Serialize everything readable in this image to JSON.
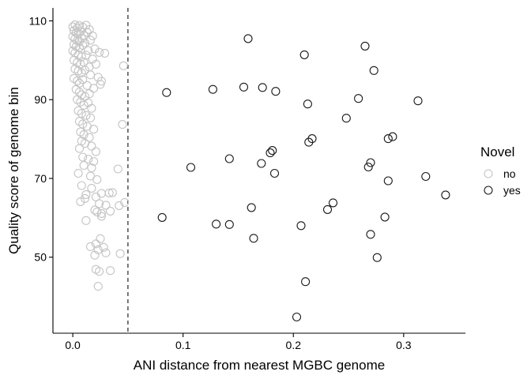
{
  "chart_data": {
    "type": "scatter",
    "title": "",
    "xlabel": "ANI distance from nearest MGBC genome",
    "ylabel": "Quality score of genome bin",
    "xlim": [
      -0.018,
      0.356
    ],
    "ylim": [
      30.7,
      113.3
    ],
    "xticks": [
      0.0,
      0.1,
      0.2,
      0.3
    ],
    "xtick_labels": [
      "0.0",
      "0.1",
      "0.2",
      "0.3"
    ],
    "yticks": [
      50,
      70,
      90,
      110
    ],
    "ytick_labels": [
      "50",
      "70",
      "90",
      "110"
    ],
    "grid": false,
    "threshold_line": {
      "x": 0.05,
      "style": "dashed",
      "color": "#333333"
    },
    "legend": {
      "title": "Novel",
      "position": "right",
      "entries": [
        "no",
        "yes"
      ]
    },
    "series": [
      {
        "name": "no",
        "color": "#c4c4c4",
        "points": [
          [
            0.0,
            108.5
          ],
          [
            0.002,
            109.0
          ],
          [
            0.004,
            108.2
          ],
          [
            0.006,
            108.8
          ],
          [
            0.009,
            108.4
          ],
          [
            0.012,
            108.9
          ],
          [
            0.015,
            107.8
          ],
          [
            0.001,
            107.5
          ],
          [
            0.003,
            107.0
          ],
          [
            0.005,
            106.7
          ],
          [
            0.007,
            107.3
          ],
          [
            0.01,
            106.3
          ],
          [
            0.013,
            107.1
          ],
          [
            0.018,
            106.2
          ],
          [
            0.0,
            106.0
          ],
          [
            0.002,
            105.5
          ],
          [
            0.004,
            105.0
          ],
          [
            0.006,
            104.8
          ],
          [
            0.008,
            105.6
          ],
          [
            0.011,
            104.4
          ],
          [
            0.016,
            105.1
          ],
          [
            0.001,
            104.0
          ],
          [
            0.003,
            103.5
          ],
          [
            0.006,
            103.2
          ],
          [
            0.009,
            103.8
          ],
          [
            0.014,
            102.5
          ],
          [
            0.02,
            102.9
          ],
          [
            0.024,
            102.0
          ],
          [
            0.0,
            102.4
          ],
          [
            0.002,
            101.9
          ],
          [
            0.005,
            101.4
          ],
          [
            0.008,
            100.9
          ],
          [
            0.012,
            101.3
          ],
          [
            0.018,
            100.3
          ],
          [
            0.029,
            101.8
          ],
          [
            0.001,
            100.0
          ],
          [
            0.004,
            99.4
          ],
          [
            0.007,
            99.0
          ],
          [
            0.01,
            99.5
          ],
          [
            0.015,
            98.3
          ],
          [
            0.021,
            99.0
          ],
          [
            0.046,
            98.6
          ],
          [
            0.002,
            97.8
          ],
          [
            0.005,
            97.3
          ],
          [
            0.008,
            96.8
          ],
          [
            0.011,
            97.5
          ],
          [
            0.016,
            96.3
          ],
          [
            0.023,
            95.7
          ],
          [
            0.026,
            94.7
          ],
          [
            0.001,
            95.4
          ],
          [
            0.004,
            94.8
          ],
          [
            0.006,
            94.2
          ],
          [
            0.009,
            95.1
          ],
          [
            0.013,
            93.6
          ],
          [
            0.019,
            92.9
          ],
          [
            0.025,
            93.9
          ],
          [
            0.003,
            92.6
          ],
          [
            0.006,
            91.9
          ],
          [
            0.008,
            91.2
          ],
          [
            0.011,
            90.8
          ],
          [
            0.015,
            91.5
          ],
          [
            0.004,
            90.0
          ],
          [
            0.007,
            89.4
          ],
          [
            0.01,
            88.6
          ],
          [
            0.014,
            89.2
          ],
          [
            0.017,
            87.8
          ],
          [
            0.005,
            87.2
          ],
          [
            0.008,
            86.5
          ],
          [
            0.012,
            86.0
          ],
          [
            0.016,
            85.4
          ],
          [
            0.006,
            84.5
          ],
          [
            0.009,
            83.8
          ],
          [
            0.013,
            83.2
          ],
          [
            0.019,
            82.5
          ],
          [
            0.045,
            83.7
          ],
          [
            0.007,
            81.8
          ],
          [
            0.01,
            81.1
          ],
          [
            0.015,
            80.4
          ],
          [
            0.008,
            79.5
          ],
          [
            0.011,
            78.9
          ],
          [
            0.017,
            78.2
          ],
          [
            0.006,
            77.6
          ],
          [
            0.021,
            76.8
          ],
          [
            0.009,
            75.4
          ],
          [
            0.014,
            74.9
          ],
          [
            0.019,
            74.3
          ],
          [
            0.01,
            73.3
          ],
          [
            0.017,
            72.7
          ],
          [
            0.041,
            72.4
          ],
          [
            0.005,
            71.3
          ],
          [
            0.016,
            70.6
          ],
          [
            0.022,
            69.7
          ],
          [
            0.008,
            68.2
          ],
          [
            0.017,
            67.5
          ],
          [
            0.012,
            65.9
          ],
          [
            0.026,
            66.2
          ],
          [
            0.033,
            66.3
          ],
          [
            0.036,
            66.4
          ],
          [
            0.011,
            64.9
          ],
          [
            0.021,
            65.3
          ],
          [
            0.007,
            64.1
          ],
          [
            0.024,
            63.6
          ],
          [
            0.03,
            63.2
          ],
          [
            0.042,
            63.1
          ],
          [
            0.047,
            63.9
          ],
          [
            0.02,
            62.0
          ],
          [
            0.022,
            61.5
          ],
          [
            0.026,
            61.1
          ],
          [
            0.034,
            61.7
          ],
          [
            0.026,
            60.4
          ],
          [
            0.012,
            59.3
          ],
          [
            0.025,
            54.7
          ],
          [
            0.021,
            53.4
          ],
          [
            0.016,
            52.7
          ],
          [
            0.028,
            52.5
          ],
          [
            0.023,
            51.9
          ],
          [
            0.03,
            51.1
          ],
          [
            0.043,
            50.9
          ],
          [
            0.02,
            50.5
          ],
          [
            0.021,
            46.9
          ],
          [
            0.024,
            46.4
          ],
          [
            0.034,
            46.6
          ],
          [
            0.023,
            42.6
          ]
        ]
      },
      {
        "name": "yes",
        "color": "#1a1a1a",
        "points": [
          [
            0.159,
            105.5
          ],
          [
            0.265,
            103.6
          ],
          [
            0.21,
            101.4
          ],
          [
            0.273,
            97.4
          ],
          [
            0.155,
            93.2
          ],
          [
            0.127,
            92.6
          ],
          [
            0.172,
            93.1
          ],
          [
            0.085,
            91.8
          ],
          [
            0.184,
            92.1
          ],
          [
            0.259,
            90.3
          ],
          [
            0.313,
            89.7
          ],
          [
            0.213,
            88.9
          ],
          [
            0.248,
            85.3
          ],
          [
            0.29,
            80.6
          ],
          [
            0.286,
            80.1
          ],
          [
            0.217,
            80.1
          ],
          [
            0.214,
            79.2
          ],
          [
            0.181,
            77.1
          ],
          [
            0.179,
            76.5
          ],
          [
            0.142,
            75.0
          ],
          [
            0.171,
            73.8
          ],
          [
            0.27,
            74.0
          ],
          [
            0.268,
            72.9
          ],
          [
            0.107,
            72.8
          ],
          [
            0.183,
            71.3
          ],
          [
            0.32,
            70.5
          ],
          [
            0.286,
            69.4
          ],
          [
            0.338,
            65.8
          ],
          [
            0.236,
            63.8
          ],
          [
            0.162,
            62.6
          ],
          [
            0.231,
            62.1
          ],
          [
            0.081,
            60.1
          ],
          [
            0.283,
            60.2
          ],
          [
            0.13,
            58.4
          ],
          [
            0.142,
            58.3
          ],
          [
            0.207,
            58.0
          ],
          [
            0.27,
            55.8
          ],
          [
            0.164,
            54.8
          ],
          [
            0.276,
            49.9
          ],
          [
            0.211,
            43.8
          ],
          [
            0.203,
            34.8
          ]
        ]
      }
    ]
  }
}
